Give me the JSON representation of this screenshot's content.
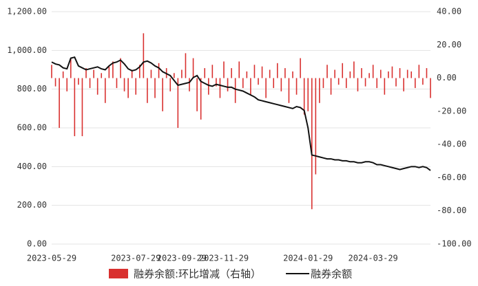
{
  "chart_data": {
    "type": "bar_line",
    "categories": [
      "2023-05-29",
      null,
      null,
      null,
      null,
      null,
      null,
      null,
      null,
      null,
      null,
      null,
      null,
      null,
      null,
      null,
      null,
      null,
      null,
      null,
      null,
      null,
      "2023-07-29",
      null,
      null,
      null,
      null,
      null,
      null,
      null,
      null,
      null,
      null,
      null,
      "2023-09-29",
      null,
      null,
      null,
      null,
      null,
      null,
      null,
      null,
      null,
      null,
      "2023-11-29",
      null,
      null,
      null,
      null,
      null,
      null,
      null,
      null,
      null,
      null,
      null,
      null,
      null,
      null,
      null,
      null,
      null,
      null,
      null,
      null,
      null,
      "2024-01-29",
      null,
      null,
      null,
      null,
      null,
      null,
      null,
      null,
      null,
      null,
      null,
      null,
      null,
      null,
      null,
      null,
      "2024-03-29",
      null,
      null,
      null,
      null,
      null,
      null,
      null,
      null,
      null,
      null,
      null,
      null,
      null,
      null,
      null
    ],
    "series": [
      {
        "name": "融券余额:环比增减（右轴）",
        "color": "#d9302f",
        "axis": "y2",
        "kind": "bar",
        "values": [
          8,
          -5,
          -30,
          4,
          -8,
          12,
          -35,
          -4,
          -35,
          6,
          -6,
          5,
          -10,
          3,
          -15,
          7,
          10,
          -6,
          12,
          -8,
          -12,
          5,
          -10,
          8,
          27,
          -15,
          5,
          -12,
          9,
          -20,
          6,
          -8,
          3,
          -30,
          5,
          15,
          -8,
          12,
          -20,
          -25,
          6,
          -10,
          8,
          -5,
          -12,
          10,
          -8,
          6,
          -15,
          10,
          -6,
          4,
          -10,
          8,
          -4,
          7,
          -12,
          5,
          -6,
          9,
          -8,
          6,
          -15,
          4,
          -10,
          12,
          -22,
          -20,
          -79,
          -58,
          -15,
          -6,
          8,
          -10,
          5,
          -4,
          9,
          -6,
          4,
          10,
          -8,
          6,
          -5,
          3,
          8,
          -6,
          5,
          -10,
          4,
          7,
          -5,
          6,
          -8,
          5,
          4,
          -6,
          8,
          -4,
          6,
          -12
        ]
      },
      {
        "name": "融券余额",
        "color": "#111111",
        "axis": "y",
        "kind": "line",
        "values": [
          940,
          930,
          925,
          910,
          905,
          960,
          965,
          920,
          910,
          900,
          905,
          910,
          915,
          905,
          900,
          920,
          935,
          940,
          950,
          930,
          905,
          895,
          900,
          915,
          940,
          945,
          935,
          920,
          910,
          890,
          880,
          870,
          845,
          820,
          825,
          830,
          835,
          860,
          870,
          840,
          830,
          820,
          815,
          825,
          820,
          815,
          810,
          810,
          800,
          795,
          790,
          780,
          770,
          760,
          745,
          740,
          735,
          730,
          725,
          720,
          715,
          710,
          705,
          700,
          710,
          705,
          690,
          600,
          460,
          455,
          450,
          445,
          440,
          440,
          435,
          435,
          430,
          430,
          425,
          425,
          420,
          420,
          425,
          425,
          420,
          410,
          410,
          405,
          400,
          395,
          390,
          385,
          390,
          395,
          400,
          400,
          395,
          400,
          395,
          380
        ]
      }
    ],
    "ylim": [
      0,
      1200
    ],
    "yticks": [
      {
        "value": 0,
        "label": "0.00"
      },
      {
        "value": 200,
        "label": "200.00"
      },
      {
        "value": 400,
        "label": "400.00"
      },
      {
        "value": 600,
        "label": "600.00"
      },
      {
        "value": 800,
        "label": "800.00"
      },
      {
        "value": 1000,
        "label": "1,000.00"
      },
      {
        "value": 1200,
        "label": "1,200.00"
      }
    ],
    "y2lim": [
      -100,
      40
    ],
    "y2ticks": [
      {
        "value": -100,
        "label": "-100.00"
      },
      {
        "value": -80,
        "label": "-80.00"
      },
      {
        "value": -60,
        "label": "-60.00"
      },
      {
        "value": -40,
        "label": "-40.00"
      },
      {
        "value": -20,
        "label": "-20.00"
      },
      {
        "value": 0,
        "label": "0.00"
      },
      {
        "value": 20,
        "label": "20.00"
      },
      {
        "value": 40,
        "label": "40.00"
      }
    ],
    "grid": true,
    "legend": "bottom"
  }
}
